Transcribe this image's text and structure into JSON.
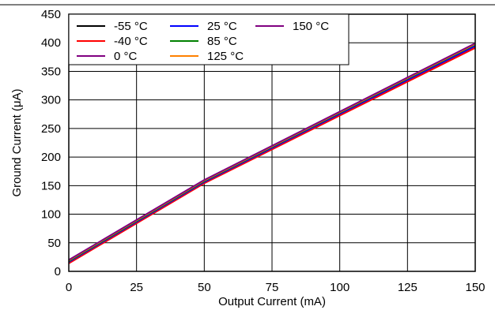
{
  "chart_data": {
    "type": "line",
    "title": "",
    "xlabel": "Output Current (mA)",
    "ylabel": "Ground Current (μA)",
    "xlim": [
      0,
      150
    ],
    "ylim": [
      0,
      450
    ],
    "xticks": [
      0,
      25,
      50,
      75,
      100,
      125,
      150
    ],
    "yticks": [
      0,
      50,
      100,
      150,
      200,
      250,
      300,
      350,
      400,
      450
    ],
    "grid": true,
    "legend_position": "top-left",
    "series": [
      {
        "name": "-55 °C",
        "color": "#000000",
        "x": [
          0,
          50,
          150
        ],
        "y": [
          15,
          155,
          393
        ]
      },
      {
        "name": "-40 °C",
        "color": "#ff0000",
        "x": [
          0,
          50,
          150
        ],
        "y": [
          14,
          154,
          391
        ]
      },
      {
        "name": "0 °C",
        "color": "#800080",
        "x": [
          0,
          50,
          150
        ],
        "y": [
          16,
          156,
          394
        ]
      },
      {
        "name": "25 °C",
        "color": "#0000ff",
        "x": [
          0,
          50,
          150
        ],
        "y": [
          17,
          157,
          395
        ]
      },
      {
        "name": "85 °C",
        "color": "#008000",
        "x": [
          0,
          50,
          150
        ],
        "y": [
          18,
          158,
          397
        ]
      },
      {
        "name": "125 °C",
        "color": "#ff8000",
        "x": [
          0,
          50,
          150
        ],
        "y": [
          19,
          159,
          398
        ]
      },
      {
        "name": "150 °C",
        "color": "#800080",
        "x": [
          0,
          50,
          150
        ],
        "y": [
          20,
          160,
          399
        ]
      }
    ]
  }
}
